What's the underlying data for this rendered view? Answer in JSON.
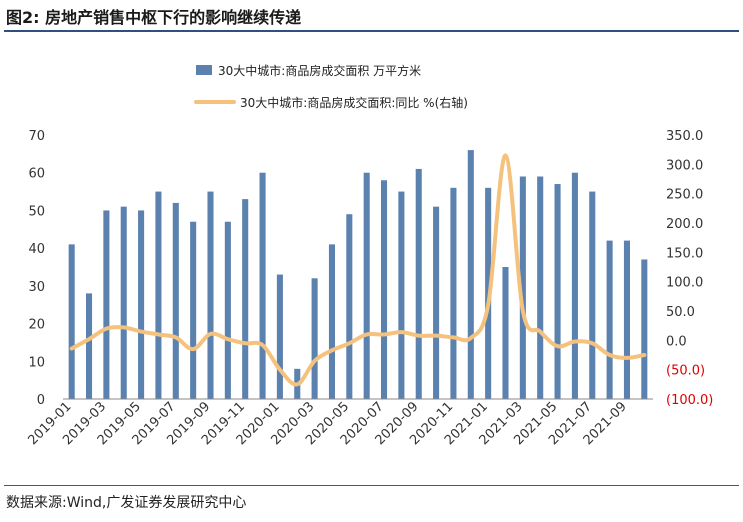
{
  "figure": {
    "label": "图2:",
    "title": "房地产销售中枢下行的影响继续传递",
    "source": "数据来源:Wind,广发证券发展研究中心"
  },
  "colors": {
    "bar": "#5b82ae",
    "line": "#f5c27e",
    "negative": "#e00000",
    "rule": "#2f4f7f"
  },
  "chart_data": {
    "type": "bar+line",
    "categories": [
      "2019-01",
      "2019-02",
      "2019-03",
      "2019-04",
      "2019-05",
      "2019-06",
      "2019-07",
      "2019-08",
      "2019-09",
      "2019-10",
      "2019-11",
      "2019-12",
      "2020-01",
      "2020-02",
      "2020-03",
      "2020-04",
      "2020-05",
      "2020-06",
      "2020-07",
      "2020-08",
      "2020-09",
      "2020-10",
      "2020-11",
      "2020-12",
      "2021-01",
      "2021-02",
      "2021-03",
      "2021-04",
      "2021-05",
      "2021-06",
      "2021-07",
      "2021-08",
      "2021-09",
      "2021-10"
    ],
    "x_tick_labels": [
      "2019-01",
      "2019-03",
      "2019-05",
      "2019-07",
      "2019-09",
      "2019-11",
      "2020-01",
      "2020-03",
      "2020-05",
      "2020-07",
      "2020-09",
      "2020-11",
      "2021-01",
      "2021-03",
      "2021-05",
      "2021-07",
      "2021-09"
    ],
    "series": [
      {
        "name": "30大中城市:商品房成交面积 万平方米",
        "type": "bar",
        "axis": "left",
        "values": [
          41,
          28,
          50,
          51,
          50,
          55,
          52,
          47,
          55,
          47,
          53,
          60,
          33,
          8,
          32,
          41,
          49,
          60,
          58,
          55,
          61,
          51,
          56,
          66,
          56,
          35,
          59,
          59,
          57,
          60,
          55,
          42,
          42,
          37
        ]
      },
      {
        "name": "30大中城市:商品房成交面积:同比 %(右轴)",
        "type": "line",
        "axis": "right",
        "values": [
          -14,
          2,
          20,
          22,
          15,
          10,
          5,
          -15,
          11,
          2,
          -5,
          -8,
          -50,
          -75,
          -35,
          -17,
          -5,
          10,
          10,
          14,
          8,
          8,
          5,
          4,
          60,
          315,
          50,
          15,
          -10,
          -2,
          -5,
          -25,
          -30,
          -25
        ]
      }
    ],
    "y_left": {
      "min": 0,
      "max": 70,
      "ticks": [
        "0",
        "10",
        "20",
        "30",
        "40",
        "50",
        "60",
        "70"
      ]
    },
    "y_right": {
      "min": -100,
      "max": 350,
      "ticks": [
        "(100.0)",
        "(50.0)",
        "0.0",
        "50.0",
        "100.0",
        "150.0",
        "200.0",
        "250.0",
        "300.0",
        "350.0"
      ]
    },
    "legend_position": "top-center",
    "grid": false
  }
}
